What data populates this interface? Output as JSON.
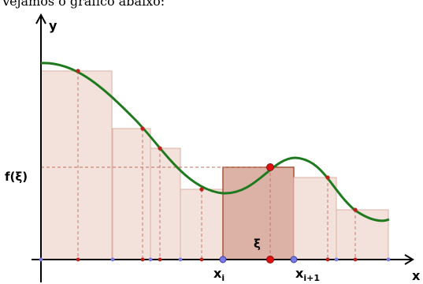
{
  "intro_text": "Vejamos o gráfico abaixo:",
  "axes": {
    "x_label": "x",
    "y_label": "y"
  },
  "labels": {
    "f_xi_main": "f(ξ)",
    "xi_point": "ξ",
    "x_i_main": "x",
    "x_i_sub": "i",
    "x_i1_main": "x",
    "x_i1_sub": "i+1"
  },
  "colors": {
    "curve": "#1f7a1f",
    "rect_fill": "#f3e2dc",
    "rect_stroke": "#dbb0a3",
    "highlight_fill": "#ddb2a6",
    "highlight_stroke": "#a34a2c",
    "dashed": "#c07060",
    "axis": "#000000",
    "grid_point": "#9a9add",
    "red_point": "#c0201a",
    "blue_point": "#7b7be6"
  }
}
